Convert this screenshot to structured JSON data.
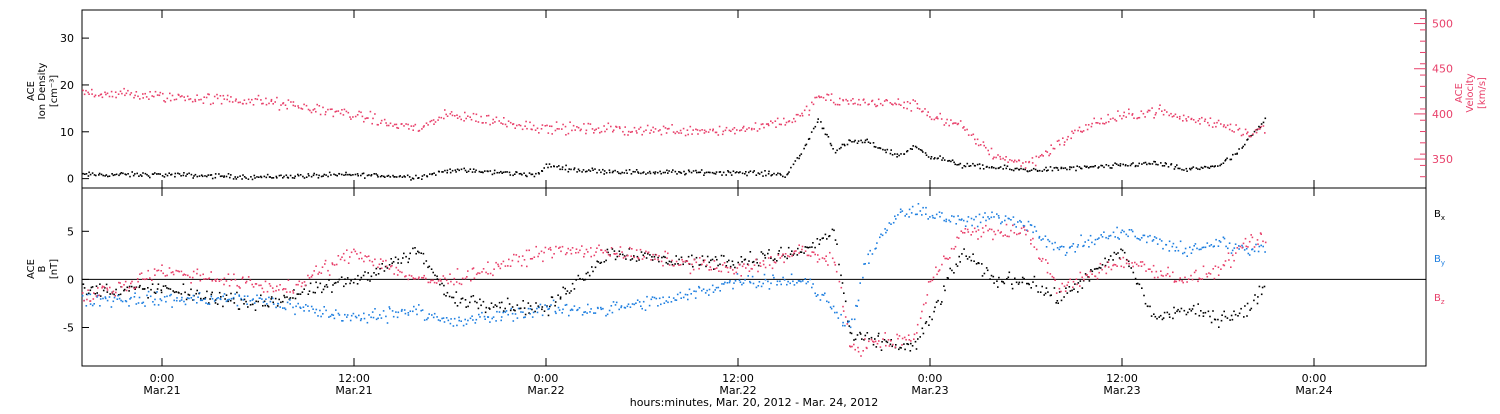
{
  "chart_data": {
    "type": "scatter",
    "x_axis": {
      "title": "hours:minutes, Mar. 20, 2012 - Mar. 24, 2012",
      "range": [
        "2012-03-20T19:00",
        "2012-03-24T07:00"
      ],
      "ticks": [
        {
          "time": "2012-03-21T00:00",
          "label_time": "0:00",
          "label_date": "Mar.21"
        },
        {
          "time": "2012-03-21T12:00",
          "label_time": "12:00",
          "label_date": "Mar.21"
        },
        {
          "time": "2012-03-22T00:00",
          "label_time": "0:00",
          "label_date": "Mar.22"
        },
        {
          "time": "2012-03-22T12:00",
          "label_time": "12:00",
          "label_date": "Mar.22"
        },
        {
          "time": "2012-03-23T00:00",
          "label_time": "0:00",
          "label_date": "Mar.23"
        },
        {
          "time": "2012-03-23T12:00",
          "label_time": "12:00",
          "label_date": "Mar.23"
        },
        {
          "time": "2012-03-24T00:00",
          "label_time": "0:00",
          "label_date": "Mar.24"
        }
      ]
    },
    "panels": [
      {
        "id": "density-velocity",
        "left_axis": {
          "label_lines": [
            "ACE",
            "Ion Density",
            "[cm⁻³]"
          ],
          "ylim": [
            -2,
            36
          ],
          "ticks": [
            0,
            10,
            20,
            30
          ],
          "color": "#000000"
        },
        "right_axis": {
          "label_lines": [
            "ACE",
            "Velocity",
            "[km/s]"
          ],
          "ylim": [
            318,
            515
          ],
          "ticks": [
            350,
            400,
            450,
            500
          ],
          "color": "#e8416b"
        },
        "series": [
          {
            "axis": "left",
            "color": "#000000",
            "t": [
              "2012-03-20T19:00",
              "2012-03-21T00:00",
              "2012-03-21T06:00",
              "2012-03-21T12:00",
              "2012-03-21T16:00",
              "2012-03-21T18:00",
              "2012-03-21T23:30",
              "2012-03-22T00:00",
              "2012-03-22T02:00",
              "2012-03-22T06:00",
              "2012-03-22T12:00",
              "2012-03-22T15:00",
              "2012-03-22T16:00",
              "2012-03-22T17:00",
              "2012-03-22T18:00",
              "2012-03-22T19:00",
              "2012-03-22T20:00",
              "2012-03-22T22:00",
              "2012-03-22T23:00",
              "2012-03-23T00:00",
              "2012-03-23T02:00",
              "2012-03-23T04:00",
              "2012-03-23T06:00",
              "2012-03-23T10:00",
              "2012-03-23T14:00",
              "2012-03-23T16:00",
              "2012-03-23T18:00",
              "2012-03-23T19:00",
              "2012-03-23T20:00",
              "2012-03-23T21:00"
            ],
            "y": [
              1,
              1,
              0.5,
              1,
              0.5,
              2,
              1,
              3,
              2,
              1.5,
              1.5,
              1,
              6,
              13,
              6,
              8,
              8,
              5,
              7,
              5,
              3,
              2.5,
              2,
              2.5,
              3.5,
              2,
              3,
              5,
              9,
              13
            ]
          },
          {
            "axis": "right",
            "color": "#e8416b",
            "t": [
              "2012-03-20T19:00",
              "2012-03-21T00:00",
              "2012-03-21T06:00",
              "2012-03-21T12:00",
              "2012-03-21T14:00",
              "2012-03-21T16:00",
              "2012-03-21T18:00",
              "2012-03-22T00:00",
              "2012-03-22T06:00",
              "2012-03-22T12:00",
              "2012-03-22T14:00",
              "2012-03-22T16:00",
              "2012-03-22T17:00",
              "2012-03-22T18:00",
              "2012-03-22T22:00",
              "2012-03-22T23:00",
              "2012-03-23T00:00",
              "2012-03-23T02:00",
              "2012-03-23T04:00",
              "2012-03-23T06:00",
              "2012-03-23T10:00",
              "2012-03-23T14:00",
              "2012-03-23T16:00",
              "2012-03-23T18:00",
              "2012-03-23T20:00",
              "2012-03-23T21:00"
            ],
            "y": [
              425,
              420,
              415,
              400,
              390,
              385,
              400,
              385,
              383,
              383,
              390,
              398,
              420,
              415,
              412,
              410,
              400,
              385,
              355,
              345,
              390,
              405,
              395,
              390,
              380,
              385
            ]
          }
        ]
      },
      {
        "id": "magnetic-field",
        "left_axis": {
          "label_lines": [
            "ACE",
            "B",
            "[nT]"
          ],
          "ylim": [
            -9,
            9.5
          ],
          "ticks": [
            -5,
            0,
            5
          ],
          "color": "#000000",
          "zero_line": true
        },
        "legend": [
          {
            "label": "B",
            "sub": "x",
            "color": "#000000"
          },
          {
            "label": "B",
            "sub": "y",
            "color": "#1f7fe0"
          },
          {
            "label": "B",
            "sub": "z",
            "color": "#e8416b"
          }
        ],
        "series": [
          {
            "name": "Bx",
            "color": "#000000",
            "t": [
              "2012-03-20T19:00",
              "2012-03-21T00:00",
              "2012-03-21T06:00",
              "2012-03-21T12:00",
              "2012-03-21T16:00",
              "2012-03-21T18:00",
              "2012-03-22T00:00",
              "2012-03-22T04:00",
              "2012-03-22T08:00",
              "2012-03-22T12:00",
              "2012-03-22T16:00",
              "2012-03-22T18:00",
              "2012-03-22T19:00",
              "2012-03-22T23:00",
              "2012-03-23T00:00",
              "2012-03-23T02:00",
              "2012-03-23T04:00",
              "2012-03-23T06:00",
              "2012-03-23T08:00",
              "2012-03-23T12:00",
              "2012-03-23T14:00",
              "2012-03-23T16:00",
              "2012-03-23T18:00",
              "2012-03-23T20:00",
              "2012-03-23T21:00"
            ],
            "y": [
              -1,
              -1,
              -2.5,
              0,
              3,
              -2,
              -3,
              3,
              2,
              2,
              3,
              5,
              -6,
              -7,
              -4,
              3,
              0,
              0,
              -2,
              3,
              -4,
              -3,
              -4,
              -3,
              0
            ]
          },
          {
            "name": "By",
            "color": "#1f7fe0",
            "t": [
              "2012-03-20T19:00",
              "2012-03-21T00:00",
              "2012-03-21T06:00",
              "2012-03-21T12:00",
              "2012-03-21T16:00",
              "2012-03-21T18:00",
              "2012-03-22T00:00",
              "2012-03-22T04:00",
              "2012-03-22T08:00",
              "2012-03-22T12:00",
              "2012-03-22T16:00",
              "2012-03-22T18:00",
              "2012-03-22T19:00",
              "2012-03-22T20:00",
              "2012-03-22T22:00",
              "2012-03-23T00:00",
              "2012-03-23T02:00",
              "2012-03-23T04:00",
              "2012-03-23T06:00",
              "2012-03-23T08:00",
              "2012-03-23T12:00",
              "2012-03-23T14:00",
              "2012-03-23T16:00",
              "2012-03-23T18:00",
              "2012-03-23T20:00",
              "2012-03-23T21:00"
            ],
            "y": [
              -2,
              -2,
              -2,
              -4,
              -3,
              -4.5,
              -3,
              -3,
              -2,
              0,
              0,
              -3,
              -5,
              2,
              7,
              7,
              6,
              6.5,
              6,
              3,
              5,
              4,
              3,
              4,
              3,
              4
            ]
          },
          {
            "name": "Bz",
            "color": "#e8416b",
            "t": [
              "2012-03-20T19:00",
              "2012-03-21T00:00",
              "2012-03-21T04:00",
              "2012-03-21T08:00",
              "2012-03-21T12:00",
              "2012-03-21T16:00",
              "2012-03-21T18:00",
              "2012-03-22T00:00",
              "2012-03-22T04:00",
              "2012-03-22T08:00",
              "2012-03-22T12:00",
              "2012-03-22T16:00",
              "2012-03-22T18:00",
              "2012-03-22T19:00",
              "2012-03-22T23:00",
              "2012-03-23T00:00",
              "2012-03-23T02:00",
              "2012-03-23T06:00",
              "2012-03-23T08:00",
              "2012-03-23T12:00",
              "2012-03-23T16:00",
              "2012-03-23T18:00",
              "2012-03-23T20:00",
              "2012-03-23T21:00"
            ],
            "y": [
              -2,
              1,
              0,
              -1,
              3,
              0,
              0,
              3,
              3,
              2,
              1,
              3,
              2,
              -7,
              -6,
              0,
              5,
              5,
              -1,
              2,
              0,
              1,
              4,
              4
            ]
          }
        ]
      }
    ]
  }
}
